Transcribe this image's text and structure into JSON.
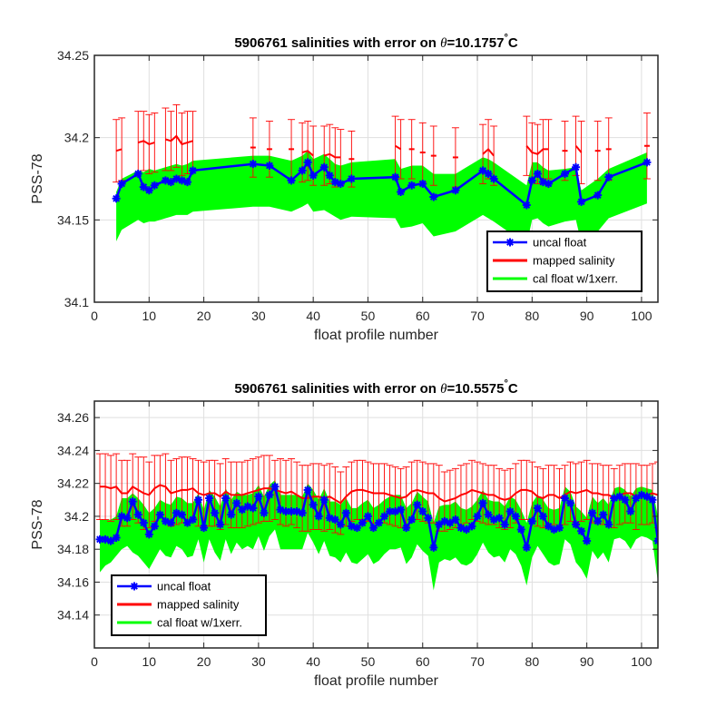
{
  "colors": {
    "uncal": "#0000ff",
    "mapped": "#ff0000",
    "cal": "#00ff00",
    "grid": "#dfdfdf",
    "axis": "#262626"
  },
  "chart_data": [
    {
      "type": "line",
      "title_prefix": "5906761 salinities with error on ",
      "title_theta": "θ",
      "title_value": "=10.1757",
      "title_deg": "°",
      "title_unit": "C",
      "xlabel": "float profile number",
      "ylabel": "PSS-78",
      "xlim": [
        0,
        103
      ],
      "ylim": [
        34.1,
        34.25
      ],
      "xticks": [
        0,
        10,
        20,
        30,
        40,
        50,
        60,
        70,
        80,
        90,
        100
      ],
      "yticks": [
        34.1,
        34.15,
        34.2,
        34.25
      ],
      "ytick_labels": [
        "34.1",
        "34.15",
        "34.2",
        "34.25"
      ],
      "grid": true,
      "legend_position": "bottom-right",
      "legend": [
        "uncal float",
        "mapped salinity",
        "cal float w/1xerr."
      ],
      "x": [
        4,
        5,
        8,
        9,
        10,
        11,
        13,
        14,
        15,
        16,
        17,
        18,
        29,
        32,
        36,
        38,
        39,
        40,
        42,
        43,
        44,
        45,
        47,
        55,
        56,
        58,
        60,
        62,
        66,
        71,
        72,
        73,
        79,
        80,
        81,
        82,
        83,
        86,
        88,
        89,
        92,
        94,
        101
      ],
      "series": [
        {
          "name": "uncal float",
          "values": [
            34.163,
            34.172,
            34.178,
            34.17,
            34.168,
            34.171,
            34.174,
            34.173,
            34.175,
            34.174,
            34.173,
            34.18,
            34.184,
            34.183,
            34.174,
            34.18,
            34.185,
            34.177,
            34.182,
            34.177,
            34.173,
            34.172,
            34.175,
            34.176,
            34.167,
            34.171,
            34.172,
            34.164,
            34.168,
            34.18,
            34.178,
            34.175,
            34.159,
            34.174,
            34.178,
            34.173,
            34.172,
            34.178,
            34.182,
            34.161,
            34.165,
            34.176,
            34.185
          ]
        },
        {
          "name": "mapped salinity",
          "values": [
            34.192,
            34.193,
            34.197,
            34.198,
            34.196,
            34.197,
            34.199,
            34.198,
            34.201,
            34.196,
            34.197,
            34.198,
            34.194,
            34.193,
            34.193,
            34.191,
            34.192,
            34.189,
            34.189,
            34.19,
            34.188,
            34.188,
            34.187,
            34.195,
            34.193,
            34.193,
            34.191,
            34.189,
            34.188,
            34.19,
            34.193,
            34.189,
            34.195,
            34.191,
            34.19,
            34.193,
            34.193,
            34.192,
            34.195,
            34.191,
            34.192,
            34.193,
            34.195
          ]
        },
        {
          "name": "mapped error",
          "values": [
            0.019,
            0.019,
            0.019,
            0.018,
            0.018,
            0.018,
            0.019,
            0.018,
            0.019,
            0.019,
            0.019,
            0.018,
            0.018,
            0.017,
            0.018,
            0.018,
            0.018,
            0.018,
            0.018,
            0.018,
            0.018,
            0.017,
            0.017,
            0.018,
            0.018,
            0.018,
            0.018,
            0.018,
            0.018,
            0.018,
            0.018,
            0.018,
            0.018,
            0.018,
            0.018,
            0.018,
            0.018,
            0.018,
            0.018,
            0.019,
            0.018,
            0.019,
            0.02
          ]
        },
        {
          "name": "cal float upper",
          "values": [
            34.167,
            34.175,
            34.18,
            34.179,
            34.181,
            34.18,
            34.182,
            34.183,
            34.184,
            34.183,
            34.184,
            34.186,
            34.189,
            34.189,
            34.186,
            34.189,
            34.192,
            34.187,
            34.19,
            34.187,
            34.184,
            34.183,
            34.185,
            34.187,
            34.181,
            34.183,
            34.183,
            34.178,
            34.178,
            34.188,
            34.187,
            34.185,
            34.171,
            34.185,
            34.185,
            34.182,
            34.18,
            34.181,
            34.182,
            34.168,
            34.175,
            34.181,
            34.191
          ]
        },
        {
          "name": "cal float lower",
          "values": [
            34.137,
            34.144,
            34.15,
            34.148,
            34.149,
            34.149,
            34.151,
            34.152,
            34.153,
            34.153,
            34.153,
            34.155,
            34.158,
            34.158,
            34.155,
            34.158,
            34.16,
            34.155,
            34.156,
            34.154,
            34.152,
            34.15,
            34.152,
            34.151,
            34.145,
            34.146,
            34.148,
            34.14,
            34.143,
            34.153,
            34.151,
            34.149,
            34.135,
            34.15,
            34.151,
            34.148,
            34.146,
            34.149,
            34.15,
            34.136,
            34.143,
            34.151,
            34.16
          ]
        }
      ]
    },
    {
      "type": "line",
      "title_prefix": "5906761 salinities with error on ",
      "title_theta": "θ",
      "title_value": "=10.5575",
      "title_deg": "°",
      "title_unit": "C",
      "xlabel": "float profile number",
      "ylabel": "PSS-78",
      "xlim": [
        0,
        103
      ],
      "ylim": [
        34.12,
        34.27
      ],
      "xticks": [
        0,
        10,
        20,
        30,
        40,
        50,
        60,
        70,
        80,
        90,
        100
      ],
      "yticks": [
        34.14,
        34.16,
        34.18,
        34.2,
        34.22,
        34.24,
        34.26
      ],
      "ytick_labels": [
        "34.14",
        "34.16",
        "34.18",
        "34.2",
        "34.22",
        "34.24",
        "34.26"
      ],
      "grid": true,
      "legend_position": "bottom-left",
      "legend": [
        "uncal float",
        "mapped salinity",
        "cal float w/1xerr."
      ],
      "x": [
        1,
        2,
        3,
        4,
        5,
        6,
        7,
        8,
        9,
        10,
        11,
        12,
        13,
        14,
        15,
        16,
        17,
        18,
        19,
        20,
        21,
        22,
        23,
        24,
        25,
        26,
        27,
        28,
        29,
        30,
        31,
        32,
        33,
        34,
        35,
        36,
        37,
        38,
        39,
        40,
        41,
        42,
        43,
        44,
        45,
        46,
        47,
        48,
        49,
        50,
        51,
        52,
        53,
        54,
        55,
        56,
        57,
        58,
        59,
        60,
        61,
        62,
        63,
        64,
        65,
        66,
        67,
        68,
        69,
        70,
        71,
        72,
        73,
        74,
        75,
        76,
        77,
        78,
        79,
        80,
        81,
        82,
        83,
        84,
        85,
        86,
        87,
        88,
        89,
        90,
        91,
        92,
        93,
        94,
        95,
        96,
        97,
        98,
        99,
        100,
        101,
        102,
        103
      ],
      "series": [
        {
          "name": "uncal float",
          "values": [
            34.186,
            34.186,
            34.185,
            34.187,
            34.2,
            34.199,
            34.209,
            34.201,
            34.196,
            34.189,
            34.194,
            34.201,
            34.197,
            34.196,
            34.202,
            34.201,
            34.196,
            34.198,
            34.21,
            34.193,
            34.211,
            34.202,
            34.195,
            34.211,
            34.201,
            34.208,
            34.204,
            34.206,
            34.205,
            34.212,
            34.202,
            34.213,
            34.218,
            34.204,
            34.203,
            34.203,
            34.203,
            34.202,
            34.216,
            34.207,
            34.2,
            34.21,
            34.199,
            34.198,
            34.195,
            34.202,
            34.194,
            34.193,
            34.196,
            34.2,
            34.193,
            34.196,
            34.2,
            34.203,
            34.203,
            34.204,
            34.193,
            34.198,
            34.207,
            34.203,
            34.199,
            34.181,
            34.195,
            34.197,
            34.196,
            34.198,
            34.193,
            34.192,
            34.194,
            34.2,
            34.208,
            34.201,
            34.198,
            34.199,
            34.195,
            34.203,
            34.2,
            34.192,
            34.181,
            34.197,
            34.205,
            34.2,
            34.194,
            34.192,
            34.193,
            34.211,
            34.208,
            34.195,
            34.191,
            34.185,
            34.202,
            34.197,
            34.201,
            34.195,
            34.211,
            34.212,
            34.21,
            34.203,
            34.211,
            34.213,
            34.212,
            34.21,
            34.185
          ]
        },
        {
          "name": "mapped salinity",
          "values": [
            34.218,
            34.218,
            34.217,
            34.218,
            34.214,
            34.214,
            34.218,
            34.216,
            34.214,
            34.213,
            34.217,
            34.219,
            34.218,
            34.214,
            34.215,
            34.216,
            34.216,
            34.217,
            34.214,
            34.213,
            34.214,
            34.214,
            34.212,
            34.215,
            34.213,
            34.213,
            34.213,
            34.214,
            34.215,
            34.216,
            34.217,
            34.217,
            34.216,
            34.215,
            34.214,
            34.215,
            34.213,
            34.211,
            34.211,
            34.212,
            34.212,
            34.211,
            34.212,
            34.21,
            34.208,
            34.212,
            34.215,
            34.216,
            34.216,
            34.215,
            34.214,
            34.214,
            34.214,
            34.213,
            34.212,
            34.211,
            34.212,
            34.215,
            34.216,
            34.215,
            34.214,
            34.214,
            34.211,
            34.209,
            34.21,
            34.211,
            34.213,
            34.214,
            34.216,
            34.215,
            34.214,
            34.213,
            34.213,
            34.211,
            34.21,
            34.211,
            34.214,
            34.216,
            34.216,
            34.215,
            34.212,
            34.211,
            34.213,
            34.213,
            34.211,
            34.213,
            34.215,
            34.214,
            34.215,
            34.216,
            34.214,
            34.214,
            34.213,
            34.213,
            34.211,
            34.213,
            34.214,
            34.214,
            34.212,
            34.213,
            34.213,
            34.214,
            34.213
          ]
        },
        {
          "name": "mapped error",
          "values": [
            0.02,
            0.02,
            0.02,
            0.02,
            0.02,
            0.02,
            0.02,
            0.02,
            0.022,
            0.02,
            0.02,
            0.018,
            0.02,
            0.02,
            0.02,
            0.02,
            0.02,
            0.018,
            0.02,
            0.02,
            0.02,
            0.02,
            0.02,
            0.02,
            0.02,
            0.02,
            0.02,
            0.02,
            0.02,
            0.02,
            0.02,
            0.02,
            0.018,
            0.02,
            0.02,
            0.02,
            0.02,
            0.02,
            0.02,
            0.02,
            0.02,
            0.02,
            0.02,
            0.02,
            0.019,
            0.018,
            0.018,
            0.018,
            0.018,
            0.018,
            0.018,
            0.018,
            0.018,
            0.018,
            0.018,
            0.018,
            0.018,
            0.018,
            0.018,
            0.018,
            0.018,
            0.018,
            0.02,
            0.018,
            0.018,
            0.018,
            0.018,
            0.018,
            0.018,
            0.018,
            0.018,
            0.018,
            0.018,
            0.018,
            0.018,
            0.018,
            0.018,
            0.018,
            0.018,
            0.018,
            0.018,
            0.018,
            0.018,
            0.018,
            0.018,
            0.018,
            0.018,
            0.018,
            0.018,
            0.018,
            0.018,
            0.018,
            0.018,
            0.018,
            0.018,
            0.018,
            0.018,
            0.018,
            0.02,
            0.018,
            0.018,
            0.018,
            0.02
          ]
        },
        {
          "name": "cal float upper",
          "values": [
            34.198,
            34.198,
            34.198,
            34.2,
            34.211,
            34.211,
            34.214,
            34.211,
            34.207,
            34.202,
            34.205,
            34.21,
            34.208,
            34.207,
            34.212,
            34.211,
            34.208,
            34.208,
            34.214,
            34.204,
            34.216,
            34.212,
            34.206,
            34.217,
            34.21,
            34.215,
            34.213,
            34.213,
            34.214,
            34.219,
            34.212,
            34.219,
            34.222,
            34.213,
            34.213,
            34.213,
            34.213,
            34.212,
            34.22,
            34.216,
            34.21,
            34.217,
            34.209,
            34.209,
            34.207,
            34.211,
            34.205,
            34.205,
            34.208,
            34.21,
            34.205,
            34.207,
            34.21,
            34.212,
            34.213,
            34.213,
            34.205,
            34.208,
            34.215,
            34.212,
            34.209,
            34.196,
            34.206,
            34.207,
            34.207,
            34.209,
            34.205,
            34.204,
            34.206,
            34.21,
            34.216,
            34.21,
            34.209,
            34.209,
            34.206,
            34.212,
            34.21,
            34.204,
            34.196,
            34.208,
            34.213,
            34.21,
            34.205,
            34.204,
            34.205,
            34.218,
            34.215,
            34.206,
            34.203,
            34.199,
            34.212,
            34.208,
            34.211,
            34.207,
            34.217,
            34.218,
            34.216,
            34.212,
            34.217,
            34.218,
            34.217,
            34.216,
            34.2
          ]
        },
        {
          "name": "cal float lower",
          "values": [
            34.166,
            34.17,
            34.172,
            34.176,
            34.18,
            34.182,
            34.178,
            34.176,
            34.172,
            34.168,
            34.174,
            34.18,
            34.176,
            34.175,
            34.182,
            34.18,
            34.175,
            34.176,
            34.186,
            34.172,
            34.186,
            34.178,
            34.173,
            34.186,
            34.177,
            34.184,
            34.18,
            34.182,
            34.18,
            34.188,
            34.179,
            34.188,
            34.192,
            34.18,
            34.18,
            34.18,
            34.18,
            34.18,
            34.19,
            34.184,
            34.177,
            34.185,
            34.176,
            34.175,
            34.172,
            34.178,
            34.172,
            34.171,
            34.174,
            34.177,
            34.171,
            34.173,
            34.177,
            34.18,
            34.18,
            34.181,
            34.171,
            34.175,
            34.183,
            34.179,
            34.176,
            34.155,
            34.172,
            34.174,
            34.173,
            34.175,
            34.171,
            34.17,
            34.172,
            34.177,
            34.184,
            34.178,
            34.175,
            34.176,
            34.172,
            34.18,
            34.177,
            34.17,
            34.158,
            34.175,
            34.182,
            34.177,
            34.172,
            34.17,
            34.171,
            34.186,
            34.183,
            34.172,
            34.168,
            34.162,
            34.179,
            34.174,
            34.178,
            34.172,
            34.186,
            34.187,
            34.185,
            34.18,
            34.186,
            34.188,
            34.187,
            34.185,
            34.16
          ]
        }
      ]
    }
  ]
}
